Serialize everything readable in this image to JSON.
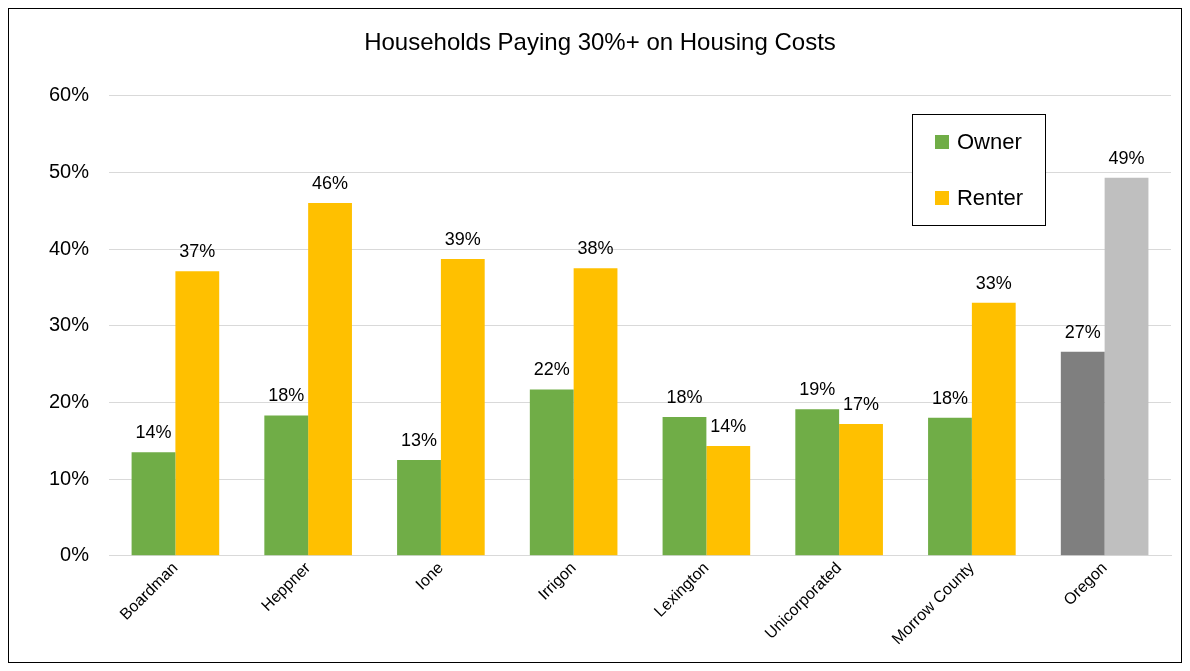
{
  "chart_data": {
    "type": "bar",
    "title": "Households Paying 30%+ on Housing Costs",
    "categories": [
      "Boardman",
      "Heppner",
      "Ione",
      "Irrigon",
      "Lexington",
      "Unicorporated",
      "Morrow County",
      "Oregon"
    ],
    "series": [
      {
        "name": "Owner",
        "color": "#70ad47",
        "colors": [
          "#70ad47",
          "#70ad47",
          "#70ad47",
          "#70ad47",
          "#70ad47",
          "#70ad47",
          "#70ad47",
          "#7f7f7f"
        ],
        "values": [
          13.5,
          18.3,
          12.5,
          21.7,
          18.1,
          19.1,
          18.0,
          26.6
        ],
        "value_labels": [
          "14%",
          "18%",
          "13%",
          "22%",
          "18%",
          "19%",
          "18%",
          "27%"
        ]
      },
      {
        "name": "Renter",
        "color": "#ffc000",
        "colors": [
          "#ffc000",
          "#ffc000",
          "#ffc000",
          "#ffc000",
          "#ffc000",
          "#ffc000",
          "#ffc000",
          "#bfbfbf"
        ],
        "values": [
          37.1,
          46.0,
          38.7,
          37.5,
          14.3,
          17.2,
          33.0,
          49.3
        ],
        "value_labels": [
          "37%",
          "46%",
          "39%",
          "38%",
          "14%",
          "17%",
          "33%",
          "49%"
        ]
      }
    ],
    "ylim": [
      0,
      60
    ],
    "yticks": [
      {
        "value": 0,
        "label": "0%"
      },
      {
        "value": 10,
        "label": "10%"
      },
      {
        "value": 20,
        "label": "20%"
      },
      {
        "value": 30,
        "label": "30%"
      },
      {
        "value": 40,
        "label": "40%"
      },
      {
        "value": 50,
        "label": "50%"
      },
      {
        "value": 60,
        "label": "60%"
      }
    ],
    "grid": "y",
    "legend": "top right"
  }
}
